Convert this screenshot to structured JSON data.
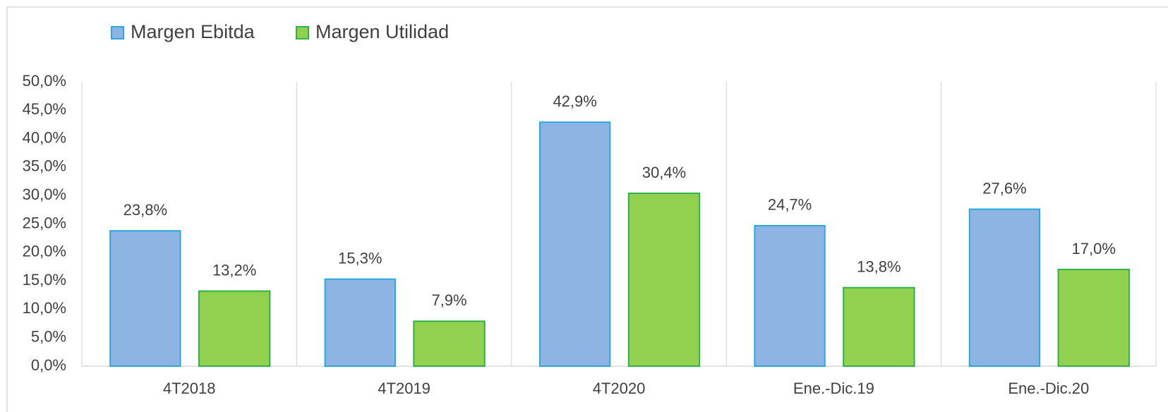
{
  "chart_data": {
    "type": "bar",
    "categories": [
      "4T2018",
      "4T2019",
      "4T2020",
      "Ene.-Dic.19",
      "Ene.-Dic.20"
    ],
    "series": [
      {
        "name": "Margen Ebitda",
        "color": "#8EB4E3",
        "edge": "#29A8E0",
        "values": [
          23.8,
          15.3,
          42.9,
          24.7,
          27.6
        ],
        "value_labels": [
          "23,8%",
          "15,3%",
          "42,9%",
          "24,7%",
          "27,6%"
        ]
      },
      {
        "name": "Margen Utilidad",
        "color": "#92D050",
        "edge": "#2DB34A",
        "values": [
          13.2,
          7.9,
          30.4,
          13.8,
          17.0
        ],
        "value_labels": [
          "13,2%",
          "7,9%",
          "30,4%",
          "13,8%",
          "17,0%"
        ]
      }
    ],
    "ylim": [
      0,
      50
    ],
    "yticks": [
      {
        "value": 0,
        "label": "0,0%"
      },
      {
        "value": 5,
        "label": "5,0%"
      },
      {
        "value": 10,
        "label": "10,0%"
      },
      {
        "value": 15,
        "label": "15,0%"
      },
      {
        "value": 20,
        "label": "20,0%"
      },
      {
        "value": 25,
        "label": "25,0%"
      },
      {
        "value": 30,
        "label": "30,0%"
      },
      {
        "value": 35,
        "label": "35,0%"
      },
      {
        "value": 40,
        "label": "40,0%"
      },
      {
        "value": 45,
        "label": "45,0%"
      },
      {
        "value": 50,
        "label": "50,0%"
      }
    ],
    "legend": "top-left"
  }
}
